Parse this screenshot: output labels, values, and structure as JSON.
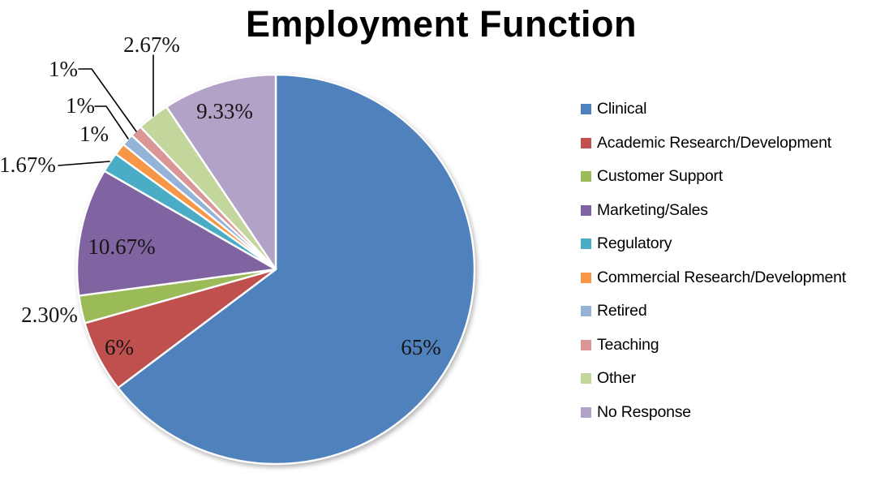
{
  "chart_data": {
    "type": "pie",
    "title": "Employment Function",
    "start_angle_deg": 0,
    "direction": "clockwise",
    "legend_position": "right",
    "grid": false,
    "slices": [
      {
        "label": "Clinical",
        "value": 65,
        "display": "65%",
        "color": "#4F81BD",
        "label_placement": "inside"
      },
      {
        "label": "Academic Research/Development",
        "value": 6,
        "display": "6%",
        "color": "#C0504D",
        "label_placement": "inside"
      },
      {
        "label": "Customer Support",
        "value": 2.3,
        "display": "2.30%",
        "color": "#9BBB59",
        "label_placement": "outside"
      },
      {
        "label": "Marketing/Sales",
        "value": 10.67,
        "display": "10.67%",
        "color": "#8064A2",
        "label_placement": "inside"
      },
      {
        "label": "Regulatory",
        "value": 1.67,
        "display": "1.67%",
        "color": "#4BACC6",
        "label_placement": "outside",
        "leader_line": true
      },
      {
        "label": "Commercial Research/Development",
        "value": 1,
        "display": "1%",
        "color": "#F79646",
        "label_placement": "outside"
      },
      {
        "label": "Retired",
        "value": 1,
        "display": "1%",
        "color": "#95B3D7",
        "label_placement": "outside",
        "leader_line": true
      },
      {
        "label": "Teaching",
        "value": 1,
        "display": "1%",
        "color": "#D99694",
        "label_placement": "outside",
        "leader_line": true
      },
      {
        "label": "Other",
        "value": 2.67,
        "display": "2.67%",
        "color": "#C3D69B",
        "label_placement": "outside",
        "leader_line": true
      },
      {
        "label": "No Response",
        "value": 9.33,
        "display": "9.33%",
        "color": "#B3A2C7",
        "label_placement": "inside"
      }
    ]
  }
}
